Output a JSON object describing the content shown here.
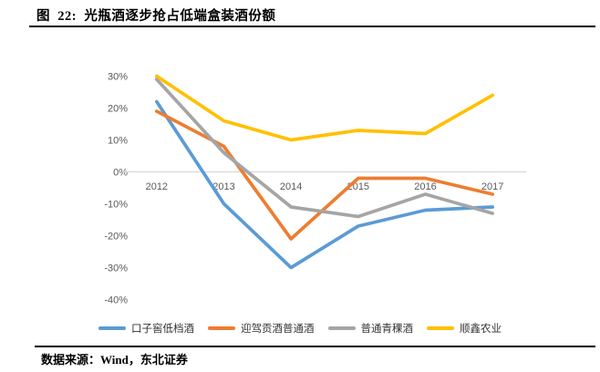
{
  "figure": {
    "title": "图  22:  光瓶酒逐步抢占低端盒装酒份额",
    "source": "数据来源：Wind，东北证券"
  },
  "colors": {
    "axis_text": "#595959",
    "gridline": "#d9d9d9",
    "rule": "#000000"
  },
  "chart_data": {
    "type": "line",
    "title": "光瓶酒逐步抢占低端盒装酒份额",
    "categories": [
      "2012",
      "2013",
      "2014",
      "2015",
      "2016",
      "2017"
    ],
    "series": [
      {
        "name": "口子窖低档酒",
        "color": "#5B9BD5",
        "values": [
          22,
          -10,
          -30,
          -17,
          -12,
          -11
        ]
      },
      {
        "name": "迎驾贡酒普通酒",
        "color": "#ED7D31",
        "values": [
          19,
          8,
          -21,
          -2,
          -2,
          -7
        ]
      },
      {
        "name": "普通青稞酒",
        "color": "#A5A5A5",
        "values": [
          29,
          6,
          -11,
          -14,
          -7,
          -13
        ]
      },
      {
        "name": "顺鑫农业",
        "color": "#FFC000",
        "values": [
          30,
          16,
          10,
          13,
          12,
          24
        ]
      }
    ],
    "ylim": [
      -40,
      30
    ],
    "ytick_step": 10,
    "ytick_labels": [
      "30%",
      "20%",
      "10%",
      "0%",
      "-10%",
      "-20%",
      "-30%",
      "-40%"
    ],
    "yunit": "%",
    "grid": "zero-line-only",
    "legend_position": "bottom"
  }
}
